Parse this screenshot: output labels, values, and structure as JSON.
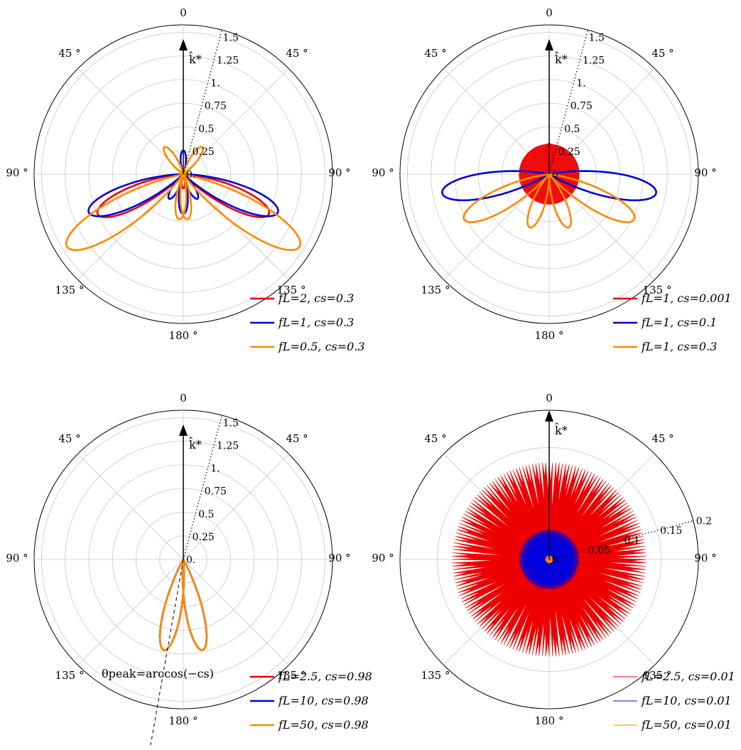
{
  "chart_data": [
    {
      "type": "polar",
      "angle_labels": [
        "0",
        "45 °",
        "45 °",
        "90 °",
        "90 °",
        "135 °",
        "135 °",
        "180 °"
      ],
      "radial_ticks": [
        "0.",
        "0.25",
        "0.5",
        "0.75",
        "1.",
        "1.25",
        "1.5"
      ],
      "rlim": [
        0,
        1.5
      ],
      "axis_label": "k̂*",
      "series": [
        {
          "name": "fL=2, cs=0.3",
          "color": "#ee0000",
          "lobes": [
            {
              "angle": 0,
              "r": 0.05
            },
            {
              "angle": 115,
              "r": 1.0
            },
            {
              "angle": -115,
              "r": 1.0
            },
            {
              "angle": 180,
              "r": 0.15
            }
          ]
        },
        {
          "name": "fL=1, cs=0.3",
          "color": "#0000dd",
          "lobes": [
            {
              "angle": 0,
              "r": 0.25
            },
            {
              "angle": 112,
              "r": 1.08
            },
            {
              "angle": -112,
              "r": 1.08
            },
            {
              "angle": 180,
              "r": 0.42
            },
            {
              "angle": 150,
              "r": 0.3
            },
            {
              "angle": -150,
              "r": 0.3
            }
          ]
        },
        {
          "name": "fL=0.5, cs=0.3",
          "color": "#ff8800",
          "lobes": [
            {
              "angle": 35,
              "r": 0.35
            },
            {
              "angle": -35,
              "r": 0.35
            },
            {
              "angle": 122,
              "r": 1.45
            },
            {
              "angle": -122,
              "r": 1.45
            },
            {
              "angle": 175,
              "r": 0.48
            },
            {
              "angle": -175,
              "r": 0.48
            }
          ]
        }
      ]
    },
    {
      "type": "polar",
      "angle_labels": [
        "0",
        "45 °",
        "45 °",
        "90 °",
        "90 °",
        "135 °",
        "135 °",
        "180 °"
      ],
      "radial_ticks": [
        "0",
        "0.25",
        "0.5",
        "0.75",
        "1.",
        "1.25",
        "1.5"
      ],
      "rlim": [
        0,
        1.5
      ],
      "axis_label": "k̂*",
      "series": [
        {
          "name": "fL=1, cs=0.001",
          "color": "#ee0000",
          "lobes": [
            {
              "angle": 0,
              "r": 0.32
            }
          ]
        },
        {
          "name": "fL=1, cs=0.1",
          "color": "#0000dd",
          "lobes": [
            {
              "angle": 100,
              "r": 1.15
            },
            {
              "angle": -100,
              "r": 1.15
            }
          ]
        },
        {
          "name": "fL=1, cs=0.3",
          "color": "#ff8800",
          "lobes": [
            {
              "angle": 118,
              "r": 1.02
            },
            {
              "angle": -118,
              "r": 1.02
            },
            {
              "angle": 160,
              "r": 0.6
            },
            {
              "angle": -160,
              "r": 0.6
            }
          ]
        }
      ]
    },
    {
      "type": "polar",
      "angle_labels": [
        "0",
        "45 °",
        "45 °",
        "90 °",
        "90 °",
        "135 °",
        "135 °",
        "180 °"
      ],
      "radial_ticks": [
        "0.",
        "0.25",
        "0.5",
        "0.75",
        "1.",
        "1.25",
        "1.5"
      ],
      "rlim": [
        0,
        1.5
      ],
      "axis_label": "k̂*",
      "annotation": "θpeak=arccos(−cs)",
      "series": [
        {
          "name": "fL=2.5, cs=0.98",
          "color": "#ee0000",
          "lobes": [
            {
              "angle": 168,
              "r": 0.98
            },
            {
              "angle": -168,
              "r": 0.98
            }
          ]
        },
        {
          "name": "fL=10, cs=0.98",
          "color": "#0000dd",
          "lobes": [
            {
              "angle": 168,
              "r": 0.98
            },
            {
              "angle": -168,
              "r": 0.98
            }
          ]
        },
        {
          "name": "fL=50, cs=0.98",
          "color": "#ff8800",
          "lobes": [
            {
              "angle": 168,
              "r": 0.98
            },
            {
              "angle": -168,
              "r": 0.98
            }
          ]
        }
      ]
    },
    {
      "type": "polar",
      "angle_labels": [
        "0",
        "45 °",
        "45 °",
        "90 °",
        "90 °",
        "135 °",
        "135 °",
        "180 °"
      ],
      "radial_ticks": [
        "0",
        "0.05",
        "0.1",
        "0.15",
        "0.2"
      ],
      "rlim": [
        0,
        0.2
      ],
      "axis_label": "k̂*",
      "series": [
        {
          "name": "fL=2.5, cs=0.01",
          "color": "#ee0000",
          "r_envelope": 0.13
        },
        {
          "name": "fL=10, cs=0.01",
          "color": "#0000dd",
          "r_envelope": 0.04
        },
        {
          "name": "fL=50, cs=0.01",
          "color": "#ff8800",
          "r_envelope": 0.005
        }
      ]
    }
  ]
}
